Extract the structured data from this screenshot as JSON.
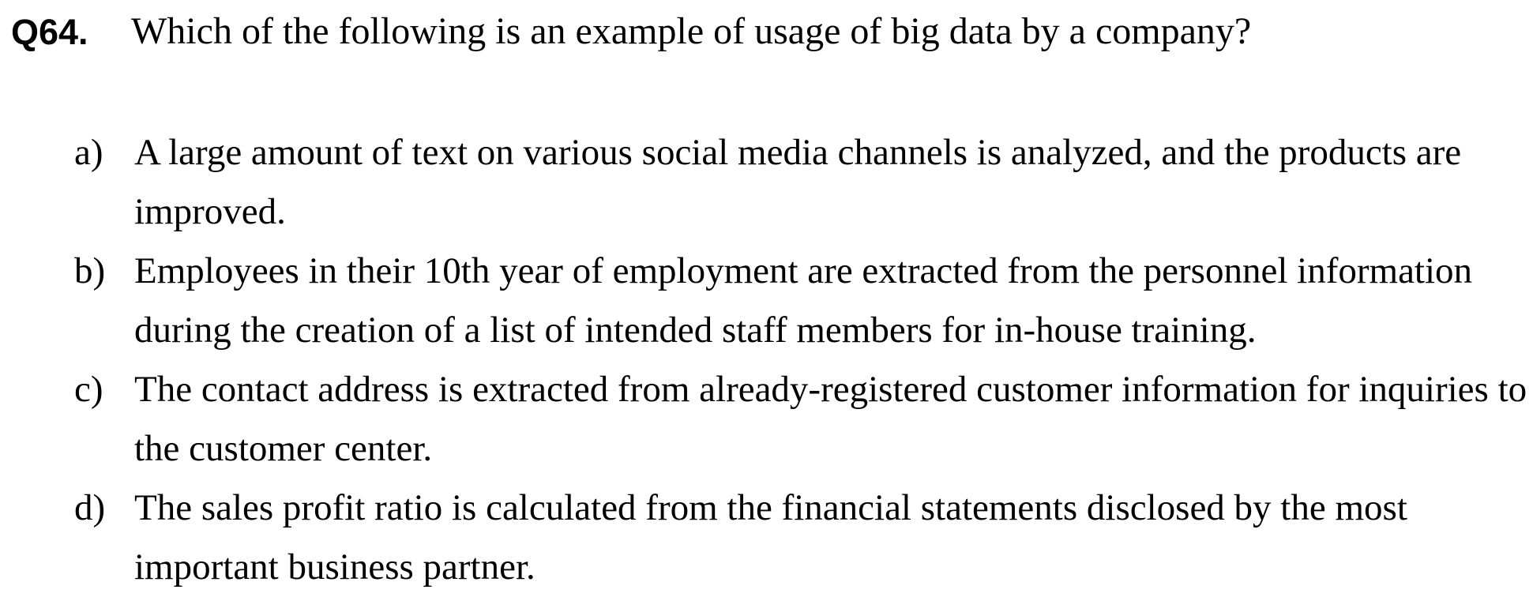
{
  "question": {
    "number": "Q64.",
    "text": "Which of the following is an example of usage of big data by a company?"
  },
  "options": [
    {
      "letter": "a)",
      "text": "A large amount of text on various social media channels is analyzed, and the products are improved."
    },
    {
      "letter": "b)",
      "text": "Employees in their 10th year of employment are extracted from the personnel information during the creation of a list of intended staff members for in-house training."
    },
    {
      "letter": "c)",
      "text": "The contact address is extracted from already-registered customer information for inquiries to the customer center."
    },
    {
      "letter": "d)",
      "text": "The sales profit ratio is calculated from the financial statements disclosed by the most important business partner."
    }
  ]
}
